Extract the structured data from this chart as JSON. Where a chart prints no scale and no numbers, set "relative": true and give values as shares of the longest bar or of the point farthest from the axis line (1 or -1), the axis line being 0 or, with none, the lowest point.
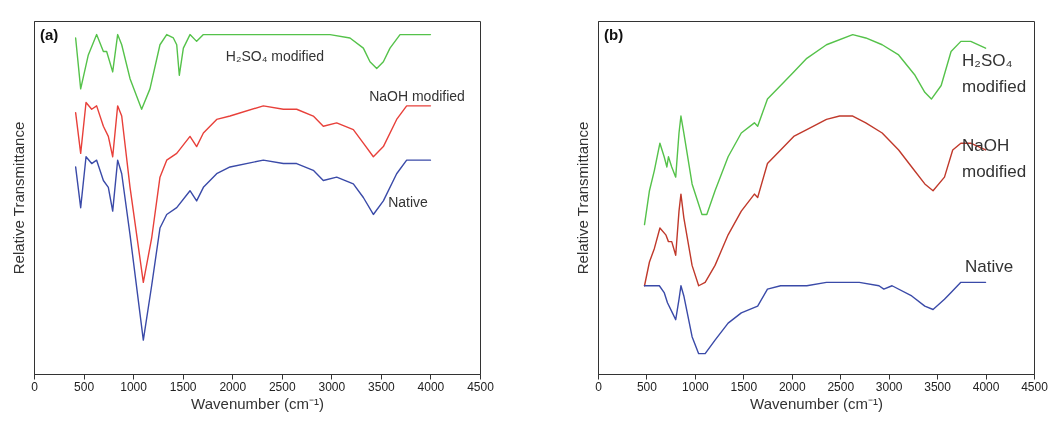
{
  "chart_data": [
    {
      "type": "line",
      "title": "(a)",
      "xlabel": "Wavenumber (cm⁻¹)",
      "ylabel": "Relative Transmittance",
      "relative": true,
      "xlim": [
        0,
        4500
      ],
      "xticks": [
        0,
        500,
        1000,
        1500,
        2000,
        2500,
        3000,
        3500,
        4000,
        4500
      ],
      "grid": false,
      "legend": false,
      "tick_labels": "x",
      "marker": "none",
      "line_style": "solid",
      "series": [
        {
          "name": "H₂SO₄ modified",
          "color": "#55c24a",
          "x": [
            420,
            471,
            548,
            632,
            700,
            733,
            794,
            844,
            885,
            969,
            1086,
            1170,
            1271,
            1339,
            1406,
            1440,
            1466,
            1507,
            1574,
            1641,
            1709,
            1978,
            2650,
            2987,
            3188,
            3323,
            3390,
            3458,
            3525,
            3592,
            3693,
            3794,
            4000
          ],
          "values": [
            0.99,
            0.84,
            0.94,
            1.0,
            0.95,
            0.95,
            0.89,
            1.0,
            0.97,
            0.87,
            0.78,
            0.84,
            0.97,
            1.0,
            0.99,
            0.97,
            0.88,
            0.96,
            1.0,
            0.98,
            1.0,
            1.0,
            1.0,
            1.0,
            0.99,
            0.96,
            0.92,
            0.9,
            0.92,
            0.96,
            1.0,
            1.0,
            1.0
          ]
        },
        {
          "name": "NaOH modified",
          "color": "#e8403a",
          "x": [
            420,
            471,
            525,
            582,
            632,
            700,
            750,
            794,
            844,
            885,
            969,
            1103,
            1187,
            1271,
            1339,
            1440,
            1574,
            1641,
            1709,
            1843,
            1978,
            2314,
            2516,
            2650,
            2818,
            2919,
            3054,
            3222,
            3323,
            3424,
            3525,
            3659,
            3760,
            4000
          ],
          "values": [
            0.77,
            0.65,
            0.8,
            0.78,
            0.79,
            0.73,
            0.7,
            0.64,
            0.79,
            0.76,
            0.55,
            0.27,
            0.4,
            0.58,
            0.63,
            0.65,
            0.7,
            0.67,
            0.71,
            0.75,
            0.76,
            0.79,
            0.78,
            0.78,
            0.76,
            0.73,
            0.74,
            0.72,
            0.68,
            0.64,
            0.67,
            0.75,
            0.79,
            0.79
          ]
        },
        {
          "name": "Native",
          "color": "#3a4aa8",
          "x": [
            420,
            471,
            525,
            582,
            632,
            700,
            750,
            794,
            844,
            885,
            969,
            1103,
            1187,
            1271,
            1339,
            1440,
            1574,
            1641,
            1709,
            1843,
            1978,
            2314,
            2516,
            2650,
            2818,
            2919,
            3054,
            3222,
            3323,
            3424,
            3525,
            3659,
            3760,
            4000
          ],
          "values": [
            0.61,
            0.49,
            0.64,
            0.62,
            0.63,
            0.57,
            0.55,
            0.48,
            0.63,
            0.59,
            0.41,
            0.1,
            0.26,
            0.43,
            0.47,
            0.49,
            0.54,
            0.51,
            0.55,
            0.59,
            0.61,
            0.63,
            0.62,
            0.62,
            0.6,
            0.57,
            0.58,
            0.56,
            0.52,
            0.47,
            0.51,
            0.59,
            0.63,
            0.63
          ]
        }
      ]
    },
    {
      "type": "line",
      "title": "(b)",
      "xlabel": "Wavenumber (cm⁻¹)",
      "ylabel": "Relative Transmittance",
      "relative": true,
      "xlim": [
        0,
        4500
      ],
      "xticks": [
        0,
        500,
        1000,
        1500,
        2000,
        2500,
        3000,
        3500,
        4000,
        4500
      ],
      "grid": false,
      "legend": false,
      "tick_labels": "x",
      "marker": "none",
      "line_style": "solid",
      "series": [
        {
          "name": "H₂SO₄ modified",
          "color": "#55c24a",
          "x": [
            480,
            531,
            582,
            639,
            683,
            711,
            727,
            761,
            802,
            836,
            856,
            886,
            971,
            1073,
            1123,
            1208,
            1343,
            1479,
            1614,
            1648,
            1749,
            1885,
            2020,
            2155,
            2358,
            2629,
            2764,
            2933,
            3103,
            3272,
            3373,
            3441,
            3542,
            3644,
            3745,
            3847,
            4000
          ],
          "values": [
            0.44,
            0.54,
            0.6,
            0.68,
            0.64,
            0.61,
            0.64,
            0.61,
            0.58,
            0.71,
            0.76,
            0.71,
            0.56,
            0.47,
            0.47,
            0.54,
            0.64,
            0.71,
            0.74,
            0.73,
            0.81,
            0.85,
            0.89,
            0.93,
            0.97,
            1.0,
            0.99,
            0.97,
            0.94,
            0.88,
            0.83,
            0.81,
            0.85,
            0.95,
            0.98,
            0.98,
            0.96
          ]
        },
        {
          "name": "NaOH modified",
          "color": "#c0392b",
          "x": [
            480,
            531,
            582,
            639,
            700,
            727,
            761,
            802,
            836,
            856,
            886,
            971,
            1039,
            1106,
            1208,
            1343,
            1479,
            1614,
            1648,
            1749,
            1885,
            2020,
            2155,
            2358,
            2494,
            2629,
            2764,
            2933,
            3103,
            3238,
            3373,
            3458,
            3576,
            3661,
            3745,
            3847,
            4000
          ],
          "values": [
            0.26,
            0.33,
            0.37,
            0.43,
            0.41,
            0.39,
            0.39,
            0.35,
            0.48,
            0.53,
            0.46,
            0.32,
            0.26,
            0.27,
            0.32,
            0.41,
            0.48,
            0.53,
            0.52,
            0.62,
            0.66,
            0.7,
            0.72,
            0.75,
            0.76,
            0.76,
            0.74,
            0.71,
            0.66,
            0.61,
            0.56,
            0.54,
            0.58,
            0.66,
            0.68,
            0.68,
            0.66
          ]
        },
        {
          "name": "Native",
          "color": "#3a4aa8",
          "x": [
            480,
            531,
            582,
            633,
            683,
            717,
            768,
            802,
            836,
            856,
            886,
            971,
            1039,
            1106,
            1208,
            1343,
            1479,
            1648,
            1749,
            1885,
            2155,
            2358,
            2697,
            2900,
            2950,
            3035,
            3238,
            3373,
            3458,
            3576,
            3644,
            3745,
            4000
          ],
          "values": [
            0.26,
            0.26,
            0.26,
            0.26,
            0.24,
            0.21,
            0.18,
            0.16,
            0.22,
            0.26,
            0.23,
            0.11,
            0.06,
            0.06,
            0.1,
            0.15,
            0.18,
            0.2,
            0.25,
            0.26,
            0.26,
            0.27,
            0.27,
            0.26,
            0.25,
            0.26,
            0.23,
            0.2,
            0.19,
            0.22,
            0.24,
            0.27,
            0.27
          ]
        }
      ]
    }
  ]
}
